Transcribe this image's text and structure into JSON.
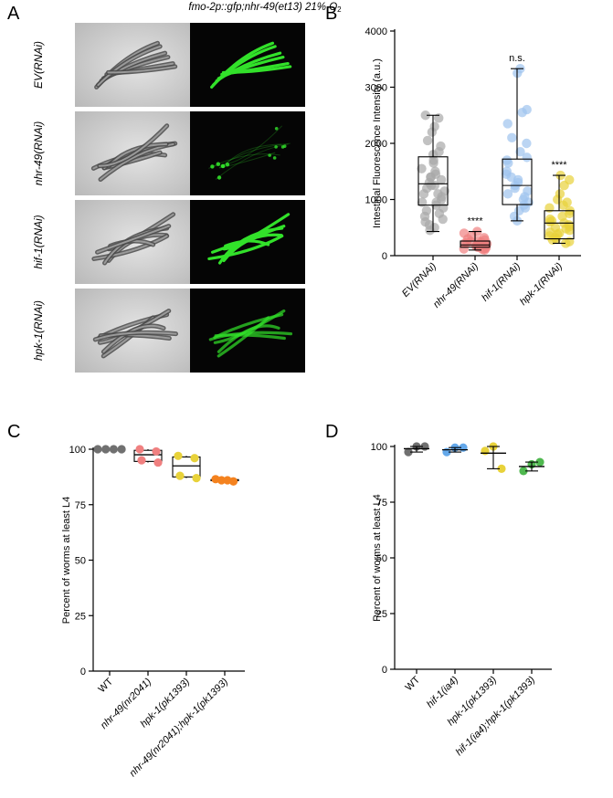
{
  "panel_letters": {
    "a": "A",
    "b": "B",
    "c": "C",
    "d": "D"
  },
  "panel_a": {
    "title_main": "fmo-2p::gfp;nhr-49(et13) 21% O",
    "title_sub": "2",
    "rows": [
      {
        "label": "EV(RNAi)",
        "fluorescence": "bright"
      },
      {
        "label": "nhr-49(RNAi)",
        "fluorescence": "dim"
      },
      {
        "label": "hif-1(RNAi)",
        "fluorescence": "bright"
      },
      {
        "label": "hpk-1(RNAi)",
        "fluorescence": "medium"
      }
    ],
    "colors": {
      "fluorescence": "#32e12a",
      "dark_bg": "#050505",
      "bf_bg": "#cfcfcf"
    }
  },
  "chart_data": [
    {
      "type": "box",
      "panel": "B",
      "ylabel": "Intestinal Fluorescence Intensity (a.u.)",
      "xlabel": "",
      "ylim": [
        0,
        4000
      ],
      "yticks": [
        0,
        1000,
        2000,
        3000,
        4000
      ],
      "categories": [
        "EV(RNAi)",
        "nhr-49(RNAi)",
        "hif-1(RNAi)",
        "hpk-1(RNAi)"
      ],
      "annotations": [
        "",
        "****",
        "n.s.",
        "****"
      ],
      "colors": [
        "#a8a8a8",
        "#f08080",
        "#9ec3ee",
        "#e8d23a"
      ],
      "boxes": [
        {
          "min": 430,
          "q1": 900,
          "median": 1280,
          "q3": 1760,
          "max": 2500
        },
        {
          "min": 100,
          "q1": 150,
          "median": 190,
          "q3": 260,
          "max": 430
        },
        {
          "min": 620,
          "q1": 910,
          "median": 1250,
          "q3": 1720,
          "max": 3330
        },
        {
          "min": 220,
          "q1": 300,
          "median": 580,
          "q3": 800,
          "max": 1430
        }
      ],
      "points": [
        [
          2500,
          2450,
          2300,
          2200,
          2050,
          1950,
          1850,
          1800,
          1700,
          1650,
          1550,
          1500,
          1450,
          1400,
          1350,
          1300,
          1250,
          1200,
          1150,
          1100,
          1050,
          1000,
          950,
          900,
          850,
          800,
          750,
          700,
          650,
          600,
          550,
          500,
          450,
          1400,
          1250,
          1100,
          950
        ],
        [
          430,
          400,
          350,
          320,
          300,
          280,
          260,
          240,
          220,
          200,
          190,
          180,
          170,
          160,
          150,
          140,
          130,
          120,
          110,
          100,
          250,
          230,
          210
        ],
        [
          3330,
          3250,
          2600,
          2550,
          2350,
          2100,
          2000,
          1850,
          1750,
          1700,
          1650,
          1500,
          1450,
          1400,
          1350,
          1300,
          1250,
          1200,
          1150,
          1100,
          1050,
          1000,
          950,
          900,
          850,
          800,
          700,
          620
        ],
        [
          1430,
          1350,
          1250,
          1100,
          1000,
          950,
          900,
          850,
          800,
          750,
          700,
          650,
          620,
          600,
          580,
          550,
          520,
          500,
          480,
          450,
          420,
          400,
          380,
          350,
          320,
          300,
          280,
          250,
          220
        ]
      ]
    },
    {
      "type": "box",
      "panel": "C",
      "ylabel": "Percent of worms at least L4",
      "xlabel": "",
      "ylim": [
        0,
        100
      ],
      "yticks": [
        0,
        25,
        50,
        75,
        100
      ],
      "categories": [
        "WT",
        "nhr-49(nr2041)",
        "hpk-1(pk1393)",
        "nhr-49(nr2041);hpk-1(pk1393)"
      ],
      "colors": [
        "#707070",
        "#f08080",
        "#e8d23a",
        "#f4821f"
      ],
      "boxes": [
        {
          "min": 100,
          "q1": 100,
          "median": 100,
          "q3": 100,
          "max": 100
        },
        {
          "min": 94,
          "q1": 94.5,
          "median": 97.5,
          "q3": 99.5,
          "max": 100
        },
        {
          "min": 87,
          "q1": 87.5,
          "median": 92.5,
          "q3": 96.5,
          "max": 97
        },
        {
          "min": 85.5,
          "q1": 85.8,
          "median": 86,
          "q3": 86.3,
          "max": 86.5
        }
      ],
      "points": [
        [
          100,
          100,
          100,
          100
        ],
        [
          100,
          99,
          95,
          94
        ],
        [
          97,
          96,
          88,
          87
        ],
        [
          86.5,
          86,
          86,
          85.5
        ]
      ]
    },
    {
      "type": "mean_sd",
      "panel": "D",
      "ylabel": "Percent of worms at least L4",
      "xlabel": "",
      "ylim": [
        0,
        100
      ],
      "yticks": [
        0,
        25,
        50,
        75,
        100
      ],
      "categories": [
        "WT",
        "hif-1(ia4)",
        "hpk-1(pk1393)",
        "hif-1(ia4);hpk-1(pk1393)"
      ],
      "colors": [
        "#707070",
        "#64a8ea",
        "#e8d23a",
        "#4fb84f"
      ],
      "summary": [
        {
          "mean": 99,
          "sd_low": 97.5,
          "sd_high": 100
        },
        {
          "mean": 98.5,
          "sd_low": 97.5,
          "sd_high": 99.5
        },
        {
          "mean": 97,
          "sd_low": 90,
          "sd_high": 100
        },
        {
          "mean": 91,
          "sd_low": 89,
          "sd_high": 93
        }
      ],
      "points": [
        [
          97.5,
          100,
          100
        ],
        [
          97.5,
          99.5,
          99.5
        ],
        [
          98,
          100,
          90
        ],
        [
          89,
          92,
          93
        ]
      ]
    }
  ]
}
